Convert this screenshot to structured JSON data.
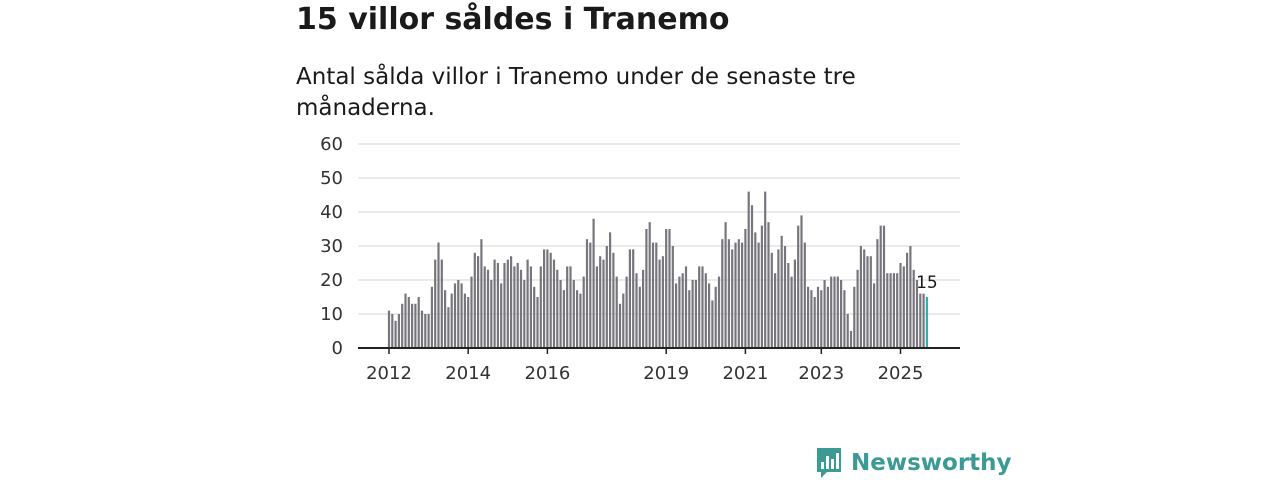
{
  "header": {
    "title": "15 villor såldes i Tranemo",
    "subtitle": "Antal sålda villor i Tranemo under de senaste tre månaderna."
  },
  "brand": {
    "name": "Newsworthy",
    "color": "#3b9a94"
  },
  "colors": {
    "bar": "#77767d",
    "highlight": "#2bb3ad",
    "grid": "#d6d6d6",
    "axis": "#222222"
  },
  "chart_data": {
    "type": "bar",
    "title": "15 villor såldes i Tranemo",
    "subtitle": "Antal sålda villor i Tranemo under de senaste tre månaderna.",
    "xlabel": "",
    "ylabel": "",
    "ylim": [
      0,
      60
    ],
    "yticks": [
      0,
      10,
      20,
      30,
      40,
      50,
      60
    ],
    "grid": true,
    "x_start": "2012-01",
    "x_ticks": [
      {
        "label": "2012",
        "index": 0
      },
      {
        "label": "2014",
        "index": 24
      },
      {
        "label": "2016",
        "index": 48
      },
      {
        "label": "2019",
        "index": 84
      },
      {
        "label": "2021",
        "index": 108
      },
      {
        "label": "2023",
        "index": 131
      },
      {
        "label": "2025",
        "index": 155
      }
    ],
    "highlight_label": "15",
    "values": [
      11,
      10,
      8,
      10,
      13,
      16,
      15,
      13,
      13,
      15,
      11,
      10,
      10,
      18,
      26,
      31,
      26,
      17,
      12,
      16,
      19,
      20,
      19,
      16,
      15,
      21,
      28,
      27,
      32,
      24,
      23,
      20,
      26,
      25,
      19,
      25,
      26,
      27,
      24,
      25,
      23,
      20,
      26,
      24,
      18,
      15,
      24,
      29,
      29,
      28,
      26,
      23,
      20,
      17,
      24,
      24,
      20,
      17,
      16,
      21,
      32,
      31,
      38,
      24,
      27,
      26,
      30,
      34,
      28,
      21,
      13,
      16,
      21,
      29,
      29,
      22,
      18,
      23,
      35,
      37,
      31,
      31,
      26,
      27,
      35,
      35,
      30,
      19,
      21,
      22,
      24,
      17,
      20,
      20,
      24,
      24,
      22,
      19,
      14,
      18,
      21,
      32,
      37,
      32,
      29,
      31,
      32,
      31,
      35,
      46,
      42,
      34,
      31,
      36,
      46,
      37,
      28,
      22,
      29,
      33,
      30,
      25,
      21,
      26,
      36,
      39,
      31,
      18,
      17,
      15,
      18,
      17,
      20,
      18,
      21,
      21,
      21,
      20,
      17,
      10,
      5,
      18,
      23,
      30,
      29,
      27,
      27,
      19,
      32,
      36,
      36,
      22,
      22,
      22,
      22,
      25,
      24,
      28,
      30,
      23,
      20,
      16,
      16,
      15
    ]
  }
}
